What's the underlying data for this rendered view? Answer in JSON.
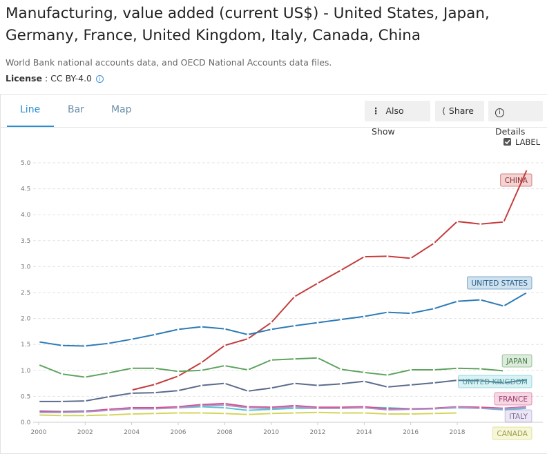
{
  "header": {
    "title": "Manufacturing, value added (current US$) - United States, Japan, Germany, France, United Kingdom, Italy, Canada, China",
    "source": "World Bank national accounts data, and OECD National Accounts data files.",
    "license_label": "License",
    "license_value": ": CC BY-4.0"
  },
  "tabs": [
    "Line",
    "Bar",
    "Map"
  ],
  "buttons": [
    "Also Show",
    "Share",
    "Details"
  ],
  "label_toggle": "LABEL",
  "chart_data": {
    "type": "line",
    "x": [
      2000,
      2001,
      2002,
      2003,
      2004,
      2005,
      2006,
      2007,
      2008,
      2009,
      2010,
      2011,
      2012,
      2013,
      2014,
      2015,
      2016,
      2017,
      2018,
      2019,
      2020,
      2021
    ],
    "xlim": [
      2000,
      2021
    ],
    "xticks": [
      2000,
      2002,
      2004,
      2006,
      2008,
      2010,
      2012,
      2014,
      2016,
      2018
    ],
    "ylim": [
      0,
      5
    ],
    "yticks": [
      {
        "value": 0,
        "label": "0.0"
      },
      {
        "value": 0.5,
        "label": "0.5"
      },
      {
        "value": 1,
        "label": "1.0"
      },
      {
        "value": 1.5,
        "label": "1.5"
      },
      {
        "value": 2,
        "label": "2.0"
      },
      {
        "value": 2.5,
        "label": "2.5"
      },
      {
        "value": 3,
        "label": "3.0"
      },
      {
        "value": 3.5,
        "label": "3.5"
      },
      {
        "value": 4,
        "label": "4.0"
      },
      {
        "value": 4.5,
        "label": "4.5"
      },
      {
        "value": 5,
        "label": "5.0"
      }
    ],
    "grid": true,
    "series": [
      {
        "name": "CHINA",
        "color": "#c43c3c",
        "values": [
          null,
          null,
          null,
          null,
          0.62,
          0.73,
          0.89,
          1.15,
          1.48,
          1.61,
          1.92,
          2.42,
          2.68,
          2.93,
          3.19,
          3.2,
          3.16,
          3.45,
          3.87,
          3.82,
          3.86,
          4.87
        ]
      },
      {
        "name": "UNITED STATES",
        "color": "#2c7bb6",
        "values": [
          1.55,
          1.48,
          1.47,
          1.52,
          1.6,
          1.69,
          1.79,
          1.84,
          1.8,
          1.69,
          1.79,
          1.86,
          1.92,
          1.98,
          2.04,
          2.12,
          2.1,
          2.19,
          2.33,
          2.36,
          2.24,
          2.5
        ]
      },
      {
        "name": "JAPAN",
        "color": "#5ea35e",
        "values": [
          1.11,
          0.93,
          0.87,
          0.95,
          1.04,
          1.04,
          0.98,
          1.0,
          1.09,
          1.01,
          1.2,
          1.22,
          1.24,
          1.02,
          0.96,
          0.91,
          1.01,
          1.01,
          1.04,
          1.03,
          0.99,
          null
        ]
      },
      {
        "color": "#5a6b8c",
        "values": [
          0.4,
          0.4,
          0.41,
          0.49,
          0.56,
          0.57,
          0.61,
          0.71,
          0.75,
          0.6,
          0.66,
          0.75,
          0.71,
          0.74,
          0.79,
          0.68,
          0.72,
          0.76,
          0.81,
          0.8,
          0.76,
          0.82
        ]
      },
      {
        "name": "UNITED KINGDOM",
        "color": "#5cc6cf",
        "values": [
          0.22,
          0.21,
          0.22,
          0.24,
          0.28,
          0.27,
          0.28,
          0.3,
          0.28,
          0.23,
          0.25,
          0.27,
          0.27,
          0.27,
          0.29,
          0.28,
          0.26,
          0.26,
          0.28,
          0.27,
          0.24,
          0.27
        ]
      },
      {
        "name": "FRANCE",
        "color": "#d84c8a",
        "values": [
          0.21,
          0.2,
          0.21,
          0.25,
          0.28,
          0.28,
          0.3,
          0.34,
          0.36,
          0.3,
          0.29,
          0.32,
          0.29,
          0.29,
          0.3,
          0.26,
          0.26,
          0.27,
          0.3,
          0.29,
          0.27,
          0.3
        ]
      },
      {
        "name": "ITALY",
        "color": "#a993cc",
        "values": [
          0.19,
          0.19,
          0.2,
          0.23,
          0.26,
          0.26,
          0.28,
          0.32,
          0.33,
          0.28,
          0.27,
          0.3,
          0.27,
          0.27,
          0.28,
          0.24,
          0.25,
          0.26,
          0.29,
          0.27,
          0.26,
          0.29
        ]
      },
      {
        "name": "CANADA",
        "color": "#d4d45a",
        "values": [
          0.14,
          0.13,
          0.13,
          0.14,
          0.16,
          0.17,
          0.18,
          0.18,
          0.17,
          0.15,
          0.17,
          0.18,
          0.19,
          0.18,
          0.18,
          0.16,
          0.16,
          0.17,
          0.18,
          null,
          null,
          null
        ]
      }
    ]
  }
}
